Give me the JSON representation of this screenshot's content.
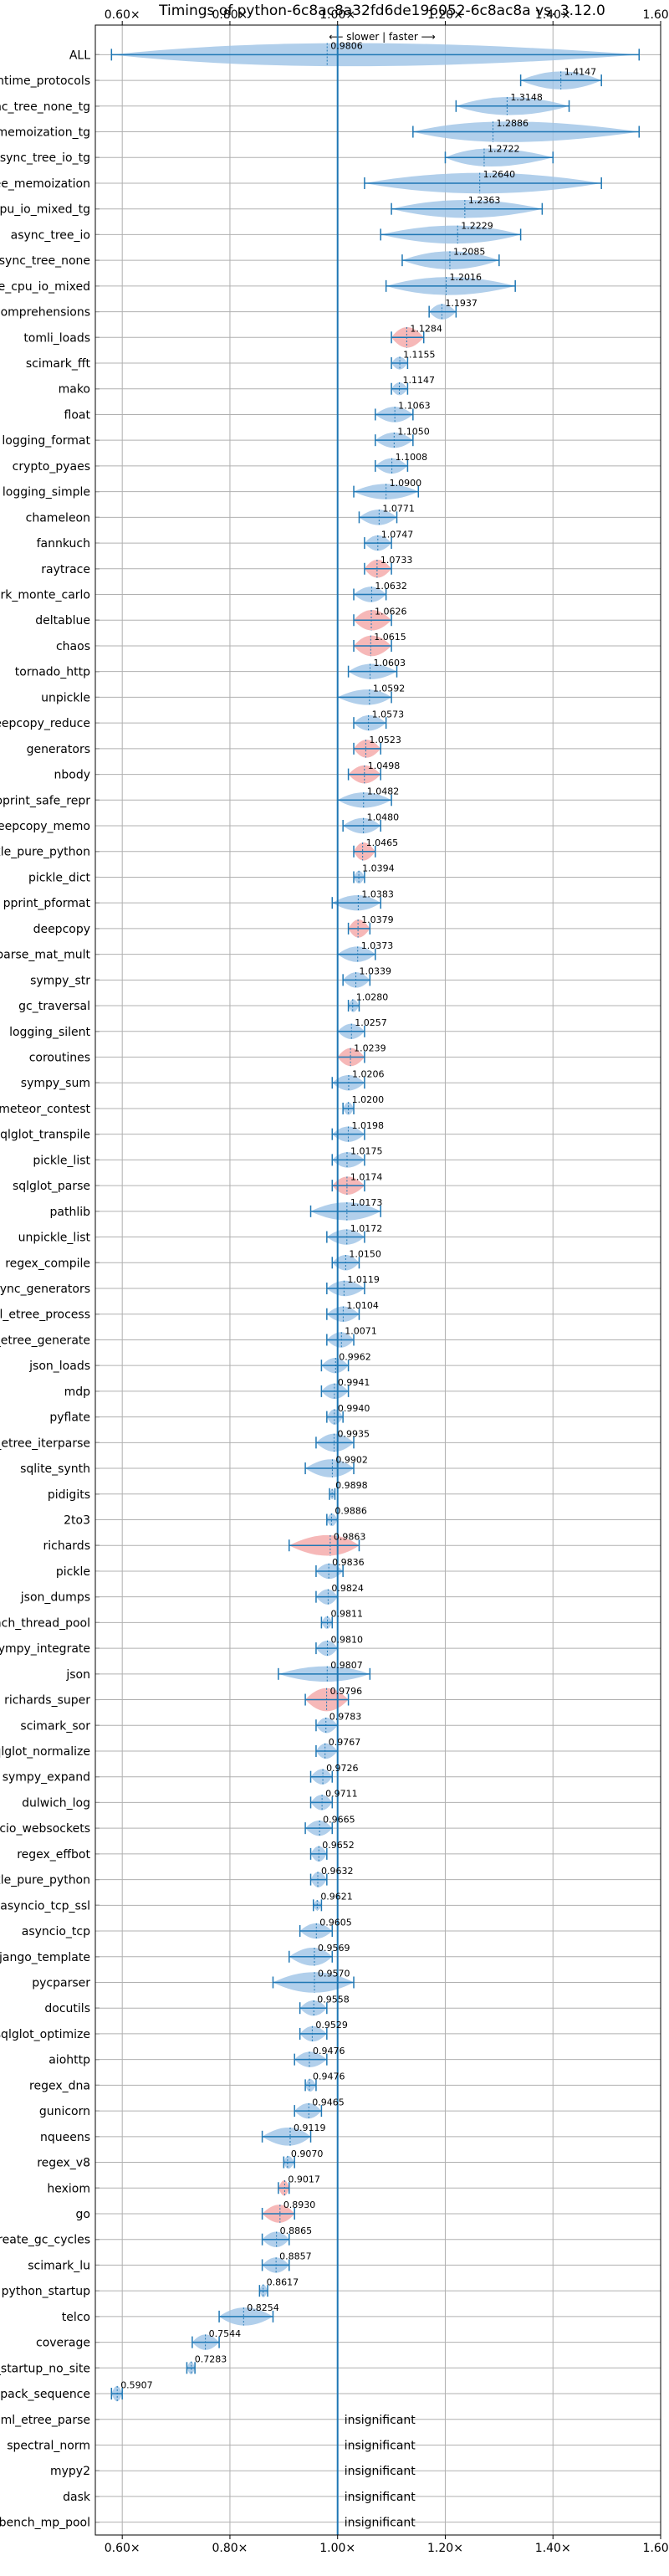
{
  "chart_data": {
    "type": "violin",
    "title": "Timings of python-6c8ac8a32fd6de196052-6c8ac8a vs. 3.12.0",
    "annotation": "⟵ slower | faster ⟶",
    "xlim": [
      0.55,
      1.6
    ],
    "xticks": [
      0.6,
      0.8,
      1.0,
      1.2,
      1.4,
      1.6
    ],
    "xtick_labels": [
      "0.60×",
      "0.80×",
      "1.00×",
      "1.20×",
      "1.40×",
      "1.60×"
    ],
    "reference_x": 1.0,
    "grid": true,
    "insignificant_label": "insignificant",
    "colors": {
      "violin": "#9dc3e6",
      "slower_violin": "#f4a6a6",
      "line": "#1f77b4",
      "grid": "#b0b0b0"
    },
    "categories": [
      {
        "name": "ALL",
        "value": 0.9806,
        "label": "0.9806",
        "min": 0.58,
        "max": 1.56,
        "width": 0.45,
        "red": false
      },
      {
        "name": "typing_runtime_protocols",
        "value": 1.4147,
        "label": "1.4147",
        "min": 1.34,
        "max": 1.49,
        "width": 0.35,
        "red": false
      },
      {
        "name": "async_tree_none_tg",
        "value": 1.3148,
        "label": "1.3148",
        "min": 1.22,
        "max": 1.43,
        "width": 0.35,
        "red": false
      },
      {
        "name": "async_tree_memoization_tg",
        "value": 1.2886,
        "label": "1.2886",
        "min": 1.14,
        "max": 1.56,
        "width": 0.4,
        "red": false
      },
      {
        "name": "async_tree_io_tg",
        "value": 1.2722,
        "label": "1.2722",
        "min": 1.2,
        "max": 1.4,
        "width": 0.35,
        "red": false
      },
      {
        "name": "async_tree_memoization",
        "value": 1.264,
        "label": "1.2640",
        "min": 1.05,
        "max": 1.49,
        "width": 0.4,
        "red": false
      },
      {
        "name": "async_tree_cpu_io_mixed_tg",
        "value": 1.2363,
        "label": "1.2363",
        "min": 1.1,
        "max": 1.38,
        "width": 0.35,
        "red": false
      },
      {
        "name": "async_tree_io",
        "value": 1.2229,
        "label": "1.2229",
        "min": 1.08,
        "max": 1.34,
        "width": 0.35,
        "red": false
      },
      {
        "name": "async_tree_none",
        "value": 1.2085,
        "label": "1.2085",
        "min": 1.12,
        "max": 1.3,
        "width": 0.35,
        "red": false
      },
      {
        "name": "async_tree_cpu_io_mixed",
        "value": 1.2016,
        "label": "1.2016",
        "min": 1.09,
        "max": 1.33,
        "width": 0.35,
        "red": false
      },
      {
        "name": "comprehensions",
        "value": 1.1937,
        "label": "1.1937",
        "min": 1.17,
        "max": 1.22,
        "width": 0.3,
        "red": false
      },
      {
        "name": "tomli_loads",
        "value": 1.1284,
        "label": "1.1284",
        "min": 1.1,
        "max": 1.16,
        "width": 0.4,
        "red": true
      },
      {
        "name": "scimark_fft",
        "value": 1.1155,
        "label": "1.1155",
        "min": 1.1,
        "max": 1.13,
        "width": 0.25,
        "red": false
      },
      {
        "name": "mako",
        "value": 1.1147,
        "label": "1.1147",
        "min": 1.1,
        "max": 1.13,
        "width": 0.25,
        "red": false
      },
      {
        "name": "float",
        "value": 1.1063,
        "label": "1.1063",
        "min": 1.07,
        "max": 1.14,
        "width": 0.3,
        "red": false
      },
      {
        "name": "logging_format",
        "value": 1.105,
        "label": "1.1050",
        "min": 1.07,
        "max": 1.14,
        "width": 0.3,
        "red": false
      },
      {
        "name": "crypto_pyaes",
        "value": 1.1008,
        "label": "1.1008",
        "min": 1.07,
        "max": 1.13,
        "width": 0.3,
        "red": false
      },
      {
        "name": "logging_simple",
        "value": 1.09,
        "label": "1.0900",
        "min": 1.03,
        "max": 1.15,
        "width": 0.3,
        "red": false
      },
      {
        "name": "chameleon",
        "value": 1.0771,
        "label": "1.0771",
        "min": 1.04,
        "max": 1.11,
        "width": 0.3,
        "red": false
      },
      {
        "name": "fannkuch",
        "value": 1.0747,
        "label": "1.0747",
        "min": 1.05,
        "max": 1.1,
        "width": 0.3,
        "red": false
      },
      {
        "name": "raytrace",
        "value": 1.0733,
        "label": "1.0733",
        "min": 1.05,
        "max": 1.1,
        "width": 0.35,
        "red": true
      },
      {
        "name": "scimark_monte_carlo",
        "value": 1.0632,
        "label": "1.0632",
        "min": 1.03,
        "max": 1.09,
        "width": 0.3,
        "red": false
      },
      {
        "name": "deltablue",
        "value": 1.0626,
        "label": "1.0626",
        "min": 1.03,
        "max": 1.1,
        "width": 0.4,
        "red": true
      },
      {
        "name": "chaos",
        "value": 1.0615,
        "label": "1.0615",
        "min": 1.03,
        "max": 1.1,
        "width": 0.4,
        "red": true
      },
      {
        "name": "tornado_http",
        "value": 1.0603,
        "label": "1.0603",
        "min": 1.02,
        "max": 1.11,
        "width": 0.3,
        "red": false
      },
      {
        "name": "unpickle",
        "value": 1.0592,
        "label": "1.0592",
        "min": 1.0,
        "max": 1.1,
        "width": 0.3,
        "red": false
      },
      {
        "name": "deepcopy_reduce",
        "value": 1.0573,
        "label": "1.0573",
        "min": 1.03,
        "max": 1.09,
        "width": 0.3,
        "red": false
      },
      {
        "name": "generators",
        "value": 1.0523,
        "label": "1.0523",
        "min": 1.03,
        "max": 1.08,
        "width": 0.35,
        "red": true
      },
      {
        "name": "nbody",
        "value": 1.0498,
        "label": "1.0498",
        "min": 1.02,
        "max": 1.08,
        "width": 0.35,
        "red": true
      },
      {
        "name": "pprint_safe_repr",
        "value": 1.0482,
        "label": "1.0482",
        "min": 1.0,
        "max": 1.1,
        "width": 0.3,
        "red": false
      },
      {
        "name": "deepcopy_memo",
        "value": 1.048,
        "label": "1.0480",
        "min": 1.01,
        "max": 1.08,
        "width": 0.3,
        "red": false
      },
      {
        "name": "pickle_pure_python",
        "value": 1.0465,
        "label": "1.0465",
        "min": 1.03,
        "max": 1.07,
        "width": 0.35,
        "red": true
      },
      {
        "name": "pickle_dict",
        "value": 1.0394,
        "label": "1.0394",
        "min": 1.03,
        "max": 1.05,
        "width": 0.25,
        "red": false
      },
      {
        "name": "pprint_pformat",
        "value": 1.0383,
        "label": "1.0383",
        "min": 0.99,
        "max": 1.08,
        "width": 0.3,
        "red": false
      },
      {
        "name": "deepcopy",
        "value": 1.0379,
        "label": "1.0379",
        "min": 1.02,
        "max": 1.06,
        "width": 0.35,
        "red": true
      },
      {
        "name": "scimark_sparse_mat_mult",
        "value": 1.0373,
        "label": "1.0373",
        "min": 1.0,
        "max": 1.07,
        "width": 0.3,
        "red": false
      },
      {
        "name": "sympy_str",
        "value": 1.0339,
        "label": "1.0339",
        "min": 1.01,
        "max": 1.06,
        "width": 0.3,
        "red": false
      },
      {
        "name": "gc_traversal",
        "value": 1.028,
        "label": "1.0280",
        "min": 1.02,
        "max": 1.04,
        "width": 0.25,
        "red": false
      },
      {
        "name": "logging_silent",
        "value": 1.0257,
        "label": "1.0257",
        "min": 1.0,
        "max": 1.05,
        "width": 0.3,
        "red": false
      },
      {
        "name": "coroutines",
        "value": 1.0239,
        "label": "1.0239",
        "min": 1.0,
        "max": 1.05,
        "width": 0.35,
        "red": true
      },
      {
        "name": "sympy_sum",
        "value": 1.0206,
        "label": "1.0206",
        "min": 0.99,
        "max": 1.05,
        "width": 0.3,
        "red": false
      },
      {
        "name": "meteor_contest",
        "value": 1.02,
        "label": "1.0200",
        "min": 1.01,
        "max": 1.03,
        "width": 0.25,
        "red": false
      },
      {
        "name": "sqlglot_transpile",
        "value": 1.0198,
        "label": "1.0198",
        "min": 0.99,
        "max": 1.05,
        "width": 0.3,
        "red": false
      },
      {
        "name": "pickle_list",
        "value": 1.0175,
        "label": "1.0175",
        "min": 0.99,
        "max": 1.05,
        "width": 0.3,
        "red": false
      },
      {
        "name": "sqlglot_parse",
        "value": 1.0174,
        "label": "1.0174",
        "min": 0.99,
        "max": 1.05,
        "width": 0.35,
        "red": true
      },
      {
        "name": "pathlib",
        "value": 1.0173,
        "label": "1.0173",
        "min": 0.95,
        "max": 1.08,
        "width": 0.35,
        "red": false
      },
      {
        "name": "unpickle_list",
        "value": 1.0172,
        "label": "1.0172",
        "min": 0.98,
        "max": 1.05,
        "width": 0.3,
        "red": false
      },
      {
        "name": "regex_compile",
        "value": 1.015,
        "label": "1.0150",
        "min": 0.99,
        "max": 1.04,
        "width": 0.3,
        "red": false
      },
      {
        "name": "async_generators",
        "value": 1.0119,
        "label": "1.0119",
        "min": 0.98,
        "max": 1.05,
        "width": 0.3,
        "red": false
      },
      {
        "name": "xml_etree_process",
        "value": 1.0104,
        "label": "1.0104",
        "min": 0.98,
        "max": 1.04,
        "width": 0.3,
        "red": false
      },
      {
        "name": "xml_etree_generate",
        "value": 1.0071,
        "label": "1.0071",
        "min": 0.98,
        "max": 1.03,
        "width": 0.3,
        "red": false
      },
      {
        "name": "json_loads",
        "value": 0.9962,
        "label": "0.9962",
        "min": 0.97,
        "max": 1.02,
        "width": 0.3,
        "red": false
      },
      {
        "name": "mdp",
        "value": 0.9941,
        "label": "0.9941",
        "min": 0.97,
        "max": 1.02,
        "width": 0.3,
        "red": false
      },
      {
        "name": "pyflate",
        "value": 0.994,
        "label": "0.9940",
        "min": 0.98,
        "max": 1.01,
        "width": 0.3,
        "red": false
      },
      {
        "name": "xml_etree_iterparse",
        "value": 0.9935,
        "label": "0.9935",
        "min": 0.96,
        "max": 1.03,
        "width": 0.35,
        "red": false
      },
      {
        "name": "sqlite_synth",
        "value": 0.9902,
        "label": "0.9902",
        "min": 0.94,
        "max": 1.03,
        "width": 0.35,
        "red": false
      },
      {
        "name": "pidigits",
        "value": 0.9898,
        "label": "0.9898",
        "min": 0.985,
        "max": 0.995,
        "width": 0.2,
        "red": false
      },
      {
        "name": "2to3",
        "value": 0.9886,
        "label": "0.9886",
        "min": 0.98,
        "max": 1.0,
        "width": 0.25,
        "red": false
      },
      {
        "name": "richards",
        "value": 0.9863,
        "label": "0.9863",
        "min": 0.91,
        "max": 1.04,
        "width": 0.4,
        "red": true
      },
      {
        "name": "pickle",
        "value": 0.9836,
        "label": "0.9836",
        "min": 0.96,
        "max": 1.01,
        "width": 0.3,
        "red": false
      },
      {
        "name": "json_dumps",
        "value": 0.9824,
        "label": "0.9824",
        "min": 0.96,
        "max": 1.0,
        "width": 0.3,
        "red": false
      },
      {
        "name": "bench_thread_pool",
        "value": 0.9811,
        "label": "0.9811",
        "min": 0.97,
        "max": 0.99,
        "width": 0.25,
        "red": false
      },
      {
        "name": "sympy_integrate",
        "value": 0.981,
        "label": "0.9810",
        "min": 0.96,
        "max": 1.0,
        "width": 0.3,
        "red": false
      },
      {
        "name": "json",
        "value": 0.9807,
        "label": "0.9807",
        "min": 0.89,
        "max": 1.06,
        "width": 0.3,
        "red": false
      },
      {
        "name": "richards_super",
        "value": 0.9796,
        "label": "0.9796",
        "min": 0.94,
        "max": 1.02,
        "width": 0.45,
        "red": true
      },
      {
        "name": "scimark_sor",
        "value": 0.9783,
        "label": "0.9783",
        "min": 0.96,
        "max": 1.0,
        "width": 0.3,
        "red": false
      },
      {
        "name": "sqlglot_normalize",
        "value": 0.9767,
        "label": "0.9767",
        "min": 0.96,
        "max": 1.0,
        "width": 0.3,
        "red": false
      },
      {
        "name": "sympy_expand",
        "value": 0.9726,
        "label": "0.9726",
        "min": 0.95,
        "max": 0.99,
        "width": 0.3,
        "red": false
      },
      {
        "name": "dulwich_log",
        "value": 0.9711,
        "label": "0.9711",
        "min": 0.95,
        "max": 0.99,
        "width": 0.3,
        "red": false
      },
      {
        "name": "asyncio_websockets",
        "value": 0.9665,
        "label": "0.9665",
        "min": 0.94,
        "max": 0.99,
        "width": 0.3,
        "red": false
      },
      {
        "name": "regex_effbot",
        "value": 0.9652,
        "label": "0.9652",
        "min": 0.95,
        "max": 0.98,
        "width": 0.3,
        "red": false
      },
      {
        "name": "unpickle_pure_python",
        "value": 0.9632,
        "label": "0.9632",
        "min": 0.95,
        "max": 0.98,
        "width": 0.3,
        "red": false
      },
      {
        "name": "asyncio_tcp_ssl",
        "value": 0.9621,
        "label": "0.9621",
        "min": 0.955,
        "max": 0.97,
        "width": 0.2,
        "red": false
      },
      {
        "name": "asyncio_tcp",
        "value": 0.9605,
        "label": "0.9605",
        "min": 0.93,
        "max": 0.99,
        "width": 0.3,
        "red": false
      },
      {
        "name": "django_template",
        "value": 0.9569,
        "label": "0.9569",
        "min": 0.91,
        "max": 0.99,
        "width": 0.35,
        "red": false
      },
      {
        "name": "pycparser",
        "value": 0.957,
        "label": "0.9570",
        "min": 0.88,
        "max": 1.03,
        "width": 0.4,
        "red": false
      },
      {
        "name": "docutils",
        "value": 0.9558,
        "label": "0.9558",
        "min": 0.93,
        "max": 0.98,
        "width": 0.3,
        "red": false
      },
      {
        "name": "sqlglot_optimize",
        "value": 0.9529,
        "label": "0.9529",
        "min": 0.93,
        "max": 0.98,
        "width": 0.3,
        "red": false
      },
      {
        "name": "aiohttp",
        "value": 0.9476,
        "label": "0.9476",
        "min": 0.92,
        "max": 0.98,
        "width": 0.3,
        "red": false
      },
      {
        "name": "regex_dna",
        "value": 0.9476,
        "label": "0.9476",
        "min": 0.94,
        "max": 0.96,
        "width": 0.25,
        "red": false
      },
      {
        "name": "gunicorn",
        "value": 0.9465,
        "label": "0.9465",
        "min": 0.92,
        "max": 0.97,
        "width": 0.3,
        "red": false
      },
      {
        "name": "nqueens",
        "value": 0.9119,
        "label": "0.9119",
        "min": 0.86,
        "max": 0.95,
        "width": 0.35,
        "red": false
      },
      {
        "name": "regex_v8",
        "value": 0.907,
        "label": "0.9070",
        "min": 0.9,
        "max": 0.92,
        "width": 0.25,
        "red": false
      },
      {
        "name": "hexiom",
        "value": 0.9017,
        "label": "0.9017",
        "min": 0.89,
        "max": 0.91,
        "width": 0.3,
        "red": true
      },
      {
        "name": "go",
        "value": 0.893,
        "label": "0.8930",
        "min": 0.86,
        "max": 0.92,
        "width": 0.35,
        "red": true
      },
      {
        "name": "create_gc_cycles",
        "value": 0.8865,
        "label": "0.8865",
        "min": 0.86,
        "max": 0.91,
        "width": 0.3,
        "red": false
      },
      {
        "name": "scimark_lu",
        "value": 0.8857,
        "label": "0.8857",
        "min": 0.86,
        "max": 0.91,
        "width": 0.3,
        "red": false
      },
      {
        "name": "python_startup",
        "value": 0.8617,
        "label": "0.8617",
        "min": 0.855,
        "max": 0.87,
        "width": 0.25,
        "red": false
      },
      {
        "name": "telco",
        "value": 0.8254,
        "label": "0.8254",
        "min": 0.78,
        "max": 0.88,
        "width": 0.35,
        "red": false
      },
      {
        "name": "coverage",
        "value": 0.7544,
        "label": "0.7544",
        "min": 0.73,
        "max": 0.78,
        "width": 0.3,
        "red": false
      },
      {
        "name": "python_startup_no_site",
        "value": 0.7283,
        "label": "0.7283",
        "min": 0.72,
        "max": 0.735,
        "width": 0.25,
        "red": false
      },
      {
        "name": "unpack_sequence",
        "value": 0.5907,
        "label": "0.5907",
        "min": 0.58,
        "max": 0.6,
        "width": 0.3,
        "red": false
      },
      {
        "name": "xml_etree_parse",
        "value": null,
        "label": "",
        "min": null,
        "max": null,
        "width": 0,
        "red": false
      },
      {
        "name": "spectral_norm",
        "value": null,
        "label": "",
        "min": null,
        "max": null,
        "width": 0,
        "red": false
      },
      {
        "name": "mypy2",
        "value": null,
        "label": "",
        "min": null,
        "max": null,
        "width": 0,
        "red": false
      },
      {
        "name": "dask",
        "value": null,
        "label": "",
        "min": null,
        "max": null,
        "width": 0,
        "red": false
      },
      {
        "name": "bench_mp_pool",
        "value": null,
        "label": "",
        "min": null,
        "max": null,
        "width": 0,
        "red": false
      }
    ]
  }
}
